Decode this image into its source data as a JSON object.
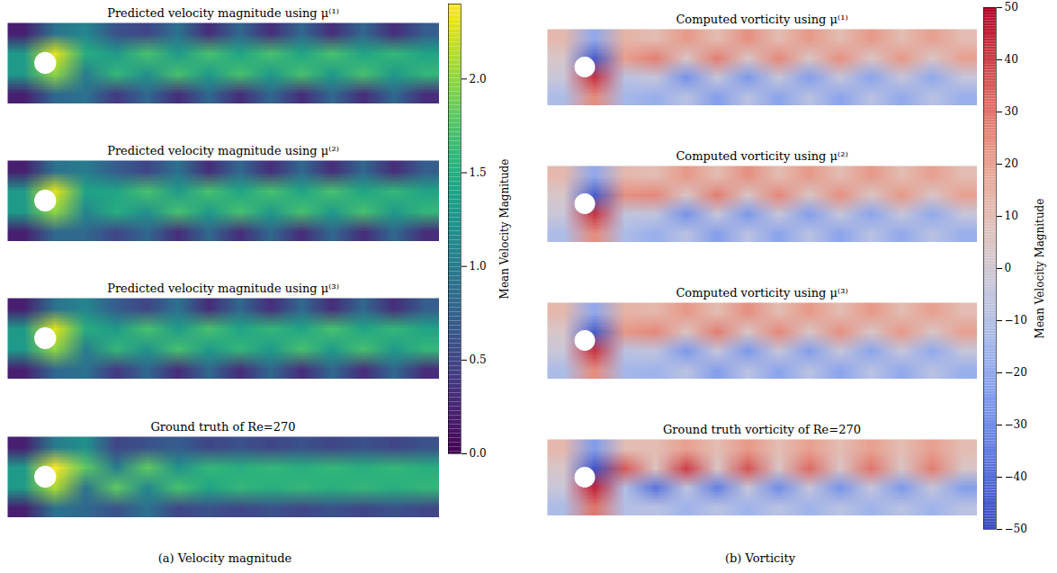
{
  "chart_data": [
    {
      "type": "heatmap",
      "caption": "(a) Velocity magnitude",
      "color": "viridis",
      "tick_labels": false,
      "colorbar": {
        "label": "Mean Velocity Magnitude",
        "range": [
          0,
          2.4
        ],
        "ticks": [
          {
            "value": 0,
            "label": "0.0"
          },
          {
            "value": 0.5,
            "label": "0.5"
          },
          {
            "value": 1,
            "label": "1.0"
          },
          {
            "value": 1.5,
            "label": "1.5"
          },
          {
            "value": 2,
            "label": "2.0"
          }
        ]
      },
      "panels": [
        {
          "title": "Predicted velocity magnitude using μ⁽¹⁾",
          "cells": [
            [
              0.2,
              0.9,
              1.1,
              0.6,
              0.5,
              0.9,
              0.3,
              0.8,
              0.3,
              0.8,
              0.3,
              0.8,
              0.3,
              0.7
            ],
            [
              1.3,
              2.3,
              1.5,
              1.3,
              1.7,
              1.3,
              1.7,
              1.4,
              1.7,
              1.4,
              1.7,
              1.4,
              1.6,
              1.4
            ],
            [
              1.3,
              2.0,
              1.0,
              1.6,
              1.2,
              1.7,
              1.3,
              1.7,
              1.3,
              1.7,
              1.3,
              1.7,
              1.3,
              1.6
            ],
            [
              0.2,
              0.8,
              0.9,
              0.4,
              0.8,
              0.3,
              0.8,
              0.3,
              0.8,
              0.3,
              0.8,
              0.3,
              0.8,
              0.3
            ]
          ]
        },
        {
          "title": "Predicted velocity magnitude using μ⁽²⁾",
          "cells": [
            [
              0.2,
              0.9,
              1.0,
              0.7,
              0.5,
              0.9,
              0.3,
              0.8,
              0.3,
              0.8,
              0.3,
              0.8,
              0.3,
              0.7
            ],
            [
              1.3,
              2.3,
              1.4,
              1.4,
              1.7,
              1.3,
              1.7,
              1.4,
              1.7,
              1.4,
              1.7,
              1.4,
              1.6,
              1.4
            ],
            [
              1.3,
              2.0,
              1.1,
              1.5,
              1.2,
              1.7,
              1.3,
              1.7,
              1.3,
              1.7,
              1.3,
              1.7,
              1.3,
              1.6
            ],
            [
              0.2,
              0.8,
              0.8,
              0.5,
              0.8,
              0.3,
              0.8,
              0.3,
              0.8,
              0.3,
              0.8,
              0.3,
              0.8,
              0.3
            ]
          ]
        },
        {
          "title": "Predicted velocity magnitude using μ⁽³⁾",
          "cells": [
            [
              0.2,
              0.9,
              1.1,
              0.7,
              0.5,
              0.9,
              0.3,
              0.8,
              0.3,
              0.8,
              0.3,
              0.8,
              0.3,
              0.7
            ],
            [
              1.3,
              2.3,
              1.5,
              1.3,
              1.7,
              1.3,
              1.7,
              1.4,
              1.6,
              1.4,
              1.7,
              1.4,
              1.6,
              1.4
            ],
            [
              1.3,
              2.0,
              1.0,
              1.6,
              1.2,
              1.7,
              1.3,
              1.6,
              1.3,
              1.7,
              1.3,
              1.7,
              1.3,
              1.6
            ],
            [
              0.2,
              0.8,
              0.9,
              0.4,
              0.8,
              0.3,
              0.8,
              0.3,
              0.8,
              0.3,
              0.8,
              0.3,
              0.8,
              0.3
            ]
          ]
        },
        {
          "title": "Ground truth of Re=270",
          "cells": [
            [
              0.2,
              1.0,
              1.2,
              0.5,
              0.6,
              0.7,
              0.5,
              0.6,
              0.5,
              0.6,
              0.5,
              0.6,
              0.5,
              0.6
            ],
            [
              1.3,
              2.4,
              1.8,
              1.0,
              1.8,
              1.2,
              1.6,
              1.5,
              1.6,
              1.5,
              1.6,
              1.5,
              1.6,
              1.5
            ],
            [
              1.3,
              2.1,
              0.9,
              1.8,
              1.1,
              1.7,
              1.4,
              1.6,
              1.5,
              1.6,
              1.5,
              1.6,
              1.5,
              1.6
            ],
            [
              0.2,
              0.9,
              0.8,
              0.6,
              0.9,
              0.5,
              0.6,
              0.5,
              0.6,
              0.5,
              0.6,
              0.5,
              0.6,
              0.5
            ]
          ]
        }
      ]
    },
    {
      "type": "heatmap",
      "caption": "(b) Vorticity",
      "color": "coolwarm",
      "tick_labels": false,
      "colorbar": {
        "label": "Mean Velocity Magnitude",
        "range": [
          -50,
          50
        ],
        "ticks": [
          -50,
          -40,
          -30,
          -20,
          -10,
          0,
          10,
          20,
          30,
          40,
          50
        ]
      },
      "panels": [
        {
          "title": "Computed vorticity using μ⁽¹⁾",
          "cells": [
            [
              12,
              -20,
              14,
              10,
              22,
              10,
              24,
              10,
              22,
              10,
              22,
              10,
              20,
              10
            ],
            [
              3,
              -45,
              20,
              28,
              4,
              28,
              4,
              26,
              4,
              24,
              4,
              22,
              4,
              20
            ],
            [
              -3,
              42,
              -8,
              -4,
              -28,
              -4,
              -26,
              -4,
              -24,
              -4,
              -22,
              -4,
              -20,
              -4
            ],
            [
              -12,
              25,
              -14,
              -18,
              -8,
              -24,
              -8,
              -22,
              -8,
              -22,
              -8,
              -20,
              -8,
              -18
            ]
          ]
        },
        {
          "title": "Computed vorticity using μ⁽²⁾",
          "cells": [
            [
              12,
              -20,
              12,
              10,
              22,
              10,
              24,
              10,
              22,
              10,
              22,
              10,
              20,
              10
            ],
            [
              3,
              -45,
              24,
              26,
              4,
              28,
              4,
              26,
              4,
              24,
              4,
              22,
              4,
              20
            ],
            [
              -3,
              42,
              -6,
              -6,
              -28,
              -4,
              -26,
              -4,
              -24,
              -4,
              -22,
              -4,
              -20,
              -4
            ],
            [
              -12,
              25,
              -12,
              -18,
              -8,
              -24,
              -8,
              -22,
              -8,
              -22,
              -8,
              -20,
              -8,
              -18
            ]
          ]
        },
        {
          "title": "Computed vorticity using μ⁽³⁾",
          "cells": [
            [
              12,
              -20,
              14,
              12,
              22,
              10,
              24,
              10,
              22,
              10,
              22,
              10,
              20,
              10
            ],
            [
              3,
              -45,
              22,
              26,
              6,
              28,
              4,
              26,
              4,
              24,
              4,
              22,
              4,
              20
            ],
            [
              -3,
              42,
              -8,
              -6,
              -26,
              -4,
              -26,
              -4,
              -24,
              -4,
              -22,
              -4,
              -20,
              -4
            ],
            [
              -12,
              25,
              -14,
              -16,
              -8,
              -24,
              -8,
              -22,
              -8,
              -22,
              -8,
              -20,
              -8,
              -18
            ]
          ]
        },
        {
          "title": "Ground truth vorticity of Re=270",
          "cells": [
            [
              12,
              -25,
              10,
              10,
              20,
              10,
              22,
              10,
              20,
              10,
              20,
              10,
              20,
              10
            ],
            [
              3,
              -48,
              35,
              6,
              40,
              4,
              36,
              4,
              32,
              4,
              30,
              4,
              28,
              4
            ],
            [
              -3,
              45,
              -10,
              -38,
              -6,
              -34,
              -4,
              -30,
              -4,
              -28,
              -4,
              -26,
              -4,
              -24
            ],
            [
              -12,
              30,
              -10,
              -8,
              -16,
              -8,
              -16,
              -8,
              -16,
              -8,
              -16,
              -8,
              -16,
              -8
            ]
          ]
        }
      ]
    }
  ]
}
